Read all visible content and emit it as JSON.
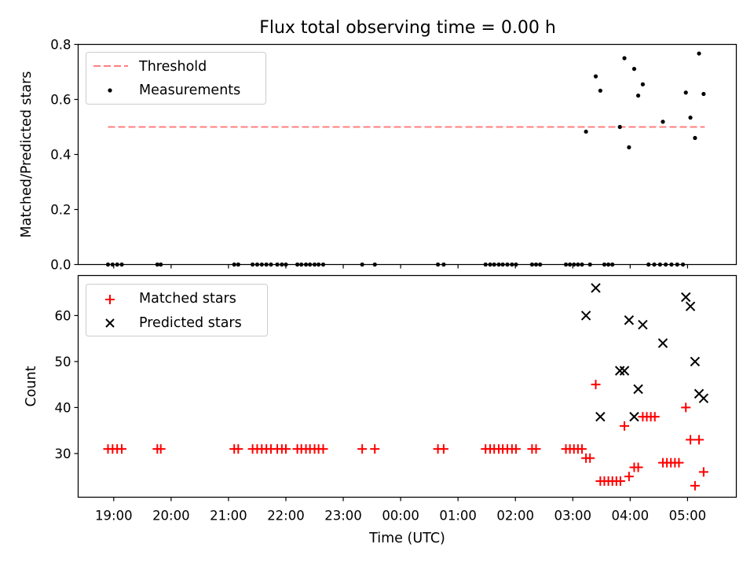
{
  "title": "Flux total observing time = 0.00 h",
  "x_ticks": [
    "19:00",
    "20:00",
    "21:00",
    "22:00",
    "23:00",
    "00:00",
    "01:00",
    "02:00",
    "03:00",
    "04:00",
    "05:00"
  ],
  "x_ticks_hours": [
    19,
    20,
    21,
    22,
    23,
    24,
    25,
    26,
    27,
    28,
    29
  ],
  "xlabel": "Time (UTC)",
  "colors": {
    "threshold": "#ff7f7f",
    "measurement": "#000000",
    "matched": "#ff0000",
    "predicted": "#000000"
  },
  "chart_data": [
    {
      "type": "scatter",
      "ylabel": "Matched/Predicted stars",
      "xlim": [
        18.38,
        29.85
      ],
      "ylim": [
        0,
        0.8
      ],
      "y_ticks": [
        "0.0",
        "0.2",
        "0.4",
        "0.6",
        "0.8"
      ],
      "y_tick_values": [
        0,
        0.2,
        0.4,
        0.6,
        0.8
      ],
      "legend": {
        "position": "top-left",
        "entries": [
          "Threshold",
          "Measurements"
        ]
      },
      "threshold": {
        "name": "Threshold",
        "y": 0.5,
        "x_range": [
          18.9,
          29.3
        ],
        "style": "dashed"
      },
      "series": [
        {
          "name": "Measurements",
          "points": [
            [
              18.9,
              0
            ],
            [
              18.98,
              0
            ],
            [
              19.06,
              0
            ],
            [
              19.14,
              0
            ],
            [
              19.76,
              0
            ],
            [
              19.82,
              0
            ],
            [
              21.1,
              0
            ],
            [
              21.17,
              0
            ],
            [
              21.42,
              0
            ],
            [
              21.5,
              0
            ],
            [
              21.58,
              0
            ],
            [
              21.66,
              0
            ],
            [
              21.74,
              0
            ],
            [
              21.85,
              0
            ],
            [
              21.93,
              0
            ],
            [
              22.0,
              0
            ],
            [
              22.2,
              0
            ],
            [
              22.27,
              0
            ],
            [
              22.35,
              0
            ],
            [
              22.42,
              0
            ],
            [
              22.5,
              0
            ],
            [
              22.57,
              0
            ],
            [
              22.65,
              0
            ],
            [
              23.33,
              0
            ],
            [
              23.55,
              0
            ],
            [
              24.65,
              0
            ],
            [
              24.75,
              0
            ],
            [
              25.48,
              0
            ],
            [
              25.56,
              0
            ],
            [
              25.63,
              0
            ],
            [
              25.71,
              0
            ],
            [
              25.78,
              0
            ],
            [
              25.86,
              0
            ],
            [
              25.94,
              0
            ],
            [
              26.01,
              0
            ],
            [
              26.29,
              0
            ],
            [
              26.36,
              0
            ],
            [
              26.43,
              0
            ],
            [
              26.88,
              0
            ],
            [
              26.95,
              0
            ],
            [
              27.02,
              0
            ],
            [
              27.09,
              0
            ],
            [
              27.16,
              0
            ],
            [
              27.3,
              0
            ],
            [
              27.55,
              0
            ],
            [
              27.62,
              0
            ],
            [
              27.69,
              0
            ],
            [
              28.32,
              0
            ],
            [
              28.42,
              0
            ],
            [
              28.52,
              0
            ],
            [
              28.62,
              0
            ],
            [
              28.72,
              0
            ],
            [
              28.82,
              0
            ],
            [
              28.92,
              0
            ],
            [
              27.23,
              0.483
            ],
            [
              27.4,
              0.684
            ],
            [
              27.48,
              0.632
            ],
            [
              27.82,
              0.5
            ],
            [
              27.9,
              0.75
            ],
            [
              27.98,
              0.426
            ],
            [
              28.07,
              0.711
            ],
            [
              28.14,
              0.614
            ],
            [
              28.22,
              0.655
            ],
            [
              28.57,
              0.519
            ],
            [
              28.97,
              0.625
            ],
            [
              29.05,
              0.534
            ],
            [
              29.13,
              0.46
            ],
            [
              29.2,
              0.767
            ],
            [
              29.28,
              0.62
            ]
          ]
        }
      ]
    },
    {
      "type": "scatter",
      "ylabel": "Count",
      "xlim": [
        18.38,
        29.85
      ],
      "ylim": [
        20.5,
        68.7
      ],
      "y_ticks": [
        "30",
        "40",
        "50",
        "60"
      ],
      "y_tick_values": [
        30,
        40,
        50,
        60
      ],
      "legend": {
        "position": "top-left",
        "entries": [
          "Matched stars",
          "Predicted stars"
        ]
      },
      "series": [
        {
          "name": "Matched stars",
          "marker": "plus",
          "points": [
            [
              18.9,
              31
            ],
            [
              18.98,
              31
            ],
            [
              19.06,
              31
            ],
            [
              19.14,
              31
            ],
            [
              19.76,
              31
            ],
            [
              19.82,
              31
            ],
            [
              21.1,
              31
            ],
            [
              21.17,
              31
            ],
            [
              21.42,
              31
            ],
            [
              21.5,
              31
            ],
            [
              21.58,
              31
            ],
            [
              21.66,
              31
            ],
            [
              21.74,
              31
            ],
            [
              21.85,
              31
            ],
            [
              21.93,
              31
            ],
            [
              22.0,
              31
            ],
            [
              22.2,
              31
            ],
            [
              22.27,
              31
            ],
            [
              22.35,
              31
            ],
            [
              22.42,
              31
            ],
            [
              22.5,
              31
            ],
            [
              22.57,
              31
            ],
            [
              22.65,
              31
            ],
            [
              23.33,
              31
            ],
            [
              23.55,
              31
            ],
            [
              24.65,
              31
            ],
            [
              24.75,
              31
            ],
            [
              25.48,
              31
            ],
            [
              25.56,
              31
            ],
            [
              25.63,
              31
            ],
            [
              25.71,
              31
            ],
            [
              25.78,
              31
            ],
            [
              25.86,
              31
            ],
            [
              25.94,
              31
            ],
            [
              26.01,
              31
            ],
            [
              26.29,
              31
            ],
            [
              26.36,
              31
            ],
            [
              26.88,
              31
            ],
            [
              26.95,
              31
            ],
            [
              27.02,
              31
            ],
            [
              27.09,
              31
            ],
            [
              27.16,
              31
            ],
            [
              27.23,
              29
            ],
            [
              27.3,
              29
            ],
            [
              27.4,
              45
            ],
            [
              27.48,
              24
            ],
            [
              27.55,
              24
            ],
            [
              27.62,
              24
            ],
            [
              27.69,
              24
            ],
            [
              27.76,
              24
            ],
            [
              27.83,
              24
            ],
            [
              27.9,
              36
            ],
            [
              27.98,
              25
            ],
            [
              28.07,
              27
            ],
            [
              28.14,
              27
            ],
            [
              28.22,
              38
            ],
            [
              28.29,
              38
            ],
            [
              28.36,
              38
            ],
            [
              28.43,
              38
            ],
            [
              28.57,
              28
            ],
            [
              28.64,
              28
            ],
            [
              28.71,
              28
            ],
            [
              28.78,
              28
            ],
            [
              28.85,
              28
            ],
            [
              28.97,
              40
            ],
            [
              29.05,
              33
            ],
            [
              29.13,
              23
            ],
            [
              29.2,
              33
            ],
            [
              29.28,
              26
            ]
          ]
        },
        {
          "name": "Predicted stars",
          "marker": "x",
          "points": [
            [
              27.23,
              60
            ],
            [
              27.4,
              66
            ],
            [
              27.48,
              38
            ],
            [
              27.82,
              48
            ],
            [
              27.9,
              48
            ],
            [
              27.98,
              59
            ],
            [
              28.07,
              38
            ],
            [
              28.14,
              44
            ],
            [
              28.22,
              58
            ],
            [
              28.57,
              54
            ],
            [
              28.97,
              64
            ],
            [
              29.05,
              62
            ],
            [
              29.13,
              50
            ],
            [
              29.2,
              43
            ],
            [
              29.28,
              42
            ]
          ]
        }
      ]
    }
  ]
}
